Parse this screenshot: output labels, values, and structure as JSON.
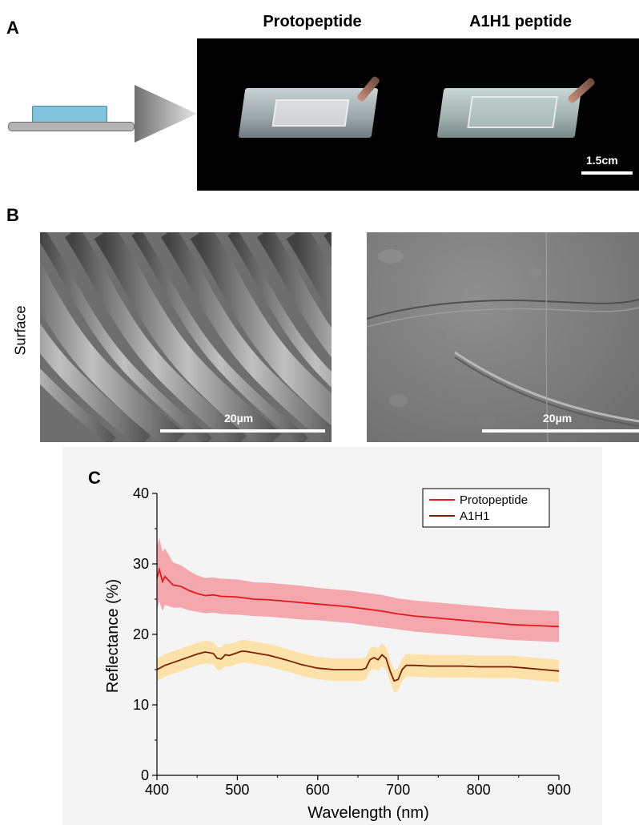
{
  "panel_a": {
    "letter": "A",
    "titles": [
      "Protopeptide",
      "A1H1 peptide"
    ],
    "scale_bar_label": "1.5cm"
  },
  "panel_b": {
    "letter": "B",
    "row_label": "Surface",
    "scale_bar_labels": [
      "20µm",
      "20µm"
    ]
  },
  "chart_data": {
    "panel_letter": "C",
    "type": "line",
    "xlabel": "Wavelength (nm)",
    "ylabel": "Reflectance (%)",
    "xlim": [
      400,
      900
    ],
    "ylim": [
      0,
      40
    ],
    "xticks": [
      400,
      500,
      600,
      700,
      800,
      900
    ],
    "yticks": [
      0,
      10,
      20,
      30,
      40
    ],
    "legend_position": "top-right",
    "series": [
      {
        "name": "Protopeptide",
        "color": "#e31a1c",
        "band_color": "#f4a0a6",
        "x": [
          400,
          403,
          407,
          410,
          420,
          430,
          440,
          450,
          460,
          470,
          480,
          500,
          520,
          540,
          560,
          580,
          600,
          620,
          640,
          660,
          680,
          700,
          720,
          740,
          760,
          780,
          800,
          820,
          840,
          860,
          880,
          900
        ],
        "y": [
          28.0,
          29.2,
          27.5,
          28.2,
          27.0,
          26.8,
          26.2,
          25.8,
          25.5,
          25.6,
          25.4,
          25.3,
          25.0,
          24.9,
          24.7,
          24.5,
          24.3,
          24.1,
          23.9,
          23.6,
          23.3,
          22.9,
          22.6,
          22.4,
          22.2,
          22.0,
          21.8,
          21.6,
          21.4,
          21.3,
          21.2,
          21.1
        ],
        "band": [
          4.5,
          4.5,
          4.2,
          4.0,
          3.2,
          3.0,
          2.8,
          2.6,
          2.5,
          2.5,
          2.5,
          2.5,
          2.4,
          2.4,
          2.4,
          2.4,
          2.3,
          2.3,
          2.3,
          2.3,
          2.3,
          2.2,
          2.2,
          2.2,
          2.2,
          2.2,
          2.2,
          2.2,
          2.2,
          2.2,
          2.2,
          2.2
        ]
      },
      {
        "name": "A1H1",
        "color": "#7a1f00",
        "band_color": "#fde0a0",
        "x": [
          400,
          410,
          420,
          430,
          440,
          450,
          460,
          470,
          475,
          480,
          485,
          490,
          500,
          505,
          510,
          520,
          540,
          560,
          580,
          600,
          620,
          640,
          655,
          660,
          665,
          670,
          675,
          680,
          685,
          690,
          695,
          700,
          705,
          710,
          720,
          740,
          760,
          780,
          800,
          820,
          840,
          860,
          880,
          900
        ],
        "y": [
          15.0,
          15.6,
          16.0,
          16.4,
          16.8,
          17.2,
          17.5,
          17.3,
          16.6,
          16.5,
          17.1,
          17.0,
          17.4,
          17.6,
          17.6,
          17.4,
          17.0,
          16.4,
          15.7,
          15.2,
          15.0,
          15.0,
          15.0,
          15.2,
          16.4,
          16.7,
          16.4,
          17.1,
          16.6,
          14.8,
          13.4,
          13.6,
          15.0,
          15.6,
          15.6,
          15.5,
          15.5,
          15.5,
          15.4,
          15.4,
          15.4,
          15.2,
          15.0,
          14.8
        ]
      }
    ]
  }
}
